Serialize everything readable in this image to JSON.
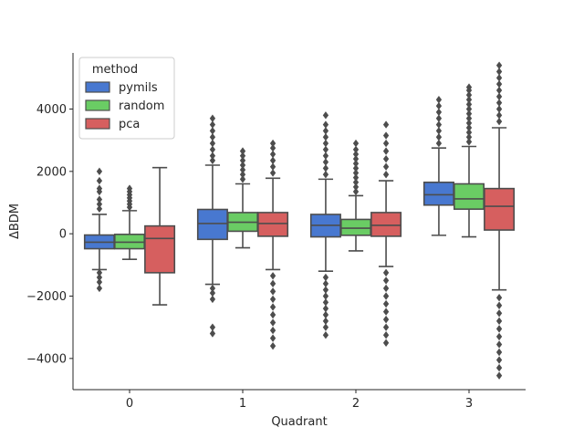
{
  "chart_data": {
    "type": "boxplot",
    "title": "",
    "xlabel": "Quadrant",
    "ylabel": "ΔBDM",
    "categories": [
      "0",
      "1",
      "2",
      "3"
    ],
    "ylim": [
      -5000,
      5800
    ],
    "yticks": [
      -4000,
      -2000,
      0,
      2000,
      4000
    ],
    "yticks_labels": [
      "−4000",
      "−2000",
      "0",
      "2000",
      "4000"
    ],
    "legend": {
      "title": "method",
      "position": "top-left"
    },
    "series": [
      {
        "name": "pymils",
        "color": "#4878d0",
        "boxes": [
          {
            "q1": -480,
            "median": -270,
            "q3": -40,
            "whisker_low": -1150,
            "whisker_high": 620,
            "outliers": [
              -1750,
              -1550,
              -1400,
              -1250,
              800,
              950,
              1100,
              1350,
              1450,
              1700,
              2000
            ]
          },
          {
            "q1": -180,
            "median": 330,
            "q3": 780,
            "whisker_low": -1620,
            "whisker_high": 2200,
            "outliers": [
              -3200,
              -3000,
              -2100,
              -1900,
              -1750,
              2350,
              2500,
              2700,
              2900,
              3100,
              3300,
              3500,
              3700
            ]
          },
          {
            "q1": -100,
            "median": 270,
            "q3": 620,
            "whisker_low": -1200,
            "whisker_high": 1750,
            "outliers": [
              -3250,
              -3000,
              -2800,
              -2600,
              -2400,
              -2200,
              -2000,
              -1800,
              -1600,
              -1400,
              1900,
              2100,
              2300,
              2500,
              2700,
              2900,
              3100,
              3300,
              3500,
              3800
            ]
          },
          {
            "q1": 920,
            "median": 1250,
            "q3": 1650,
            "whisker_low": -50,
            "whisker_high": 2750,
            "outliers": [
              2900,
              3100,
              3300,
              3500,
              3700,
              3900,
              4100,
              4300
            ]
          }
        ]
      },
      {
        "name": "random",
        "color": "#6acc64",
        "boxes": [
          {
            "q1": -480,
            "median": -270,
            "q3": -20,
            "whisker_low": -820,
            "whisker_high": 740,
            "outliers": [
              850,
              950,
              1050,
              1150,
              1250,
              1350,
              1450
            ]
          },
          {
            "q1": 80,
            "median": 370,
            "q3": 680,
            "whisker_low": -450,
            "whisker_high": 1600,
            "outliers": [
              1750,
              1900,
              2050,
              2200,
              2350,
              2500,
              2650
            ]
          },
          {
            "q1": -50,
            "median": 180,
            "q3": 460,
            "whisker_low": -550,
            "whisker_high": 1220,
            "outliers": [
              1350,
              1500,
              1650,
              1800,
              1950,
              2100,
              2250,
              2400,
              2550,
              2700,
              2900
            ]
          },
          {
            "q1": 790,
            "median": 1120,
            "q3": 1600,
            "whisker_low": -100,
            "whisker_high": 2800,
            "outliers": [
              2950,
              3100,
              3250,
              3400,
              3550,
              3700,
              3850,
              4000,
              4150,
              4300,
              4450,
              4600,
              4700
            ]
          }
        ]
      },
      {
        "name": "pca",
        "color": "#d65f5f",
        "boxes": [
          {
            "q1": -1250,
            "median": -150,
            "q3": 250,
            "whisker_low": -2280,
            "whisker_high": 2120,
            "outliers": []
          },
          {
            "q1": -80,
            "median": 330,
            "q3": 680,
            "whisker_low": -1150,
            "whisker_high": 1780,
            "outliers": [
              -3600,
              -3350,
              -3100,
              -2850,
              -2600,
              -2350,
              -2100,
              -1850,
              -1600,
              -1350,
              1950,
              2150,
              2350,
              2550,
              2750,
              2900
            ]
          },
          {
            "q1": -80,
            "median": 270,
            "q3": 680,
            "whisker_low": -1050,
            "whisker_high": 1700,
            "outliers": [
              -3500,
              -3250,
              -3000,
              -2750,
              -2500,
              -2250,
              -2000,
              -1750,
              -1500,
              -1250,
              1900,
              2150,
              2400,
              2650,
              2900,
              3150,
              3500
            ]
          },
          {
            "q1": 120,
            "median": 880,
            "q3": 1450,
            "whisker_low": -1800,
            "whisker_high": 3400,
            "outliers": [
              -4550,
              -4300,
              -4050,
              -3800,
              -3550,
              -3300,
              -3050,
              -2800,
              -2550,
              -2300,
              -2050,
              3600,
              3800,
              4000,
              4200,
              4400,
              4600,
              4800,
              5000,
              5200,
              5400
            ]
          }
        ]
      }
    ]
  }
}
